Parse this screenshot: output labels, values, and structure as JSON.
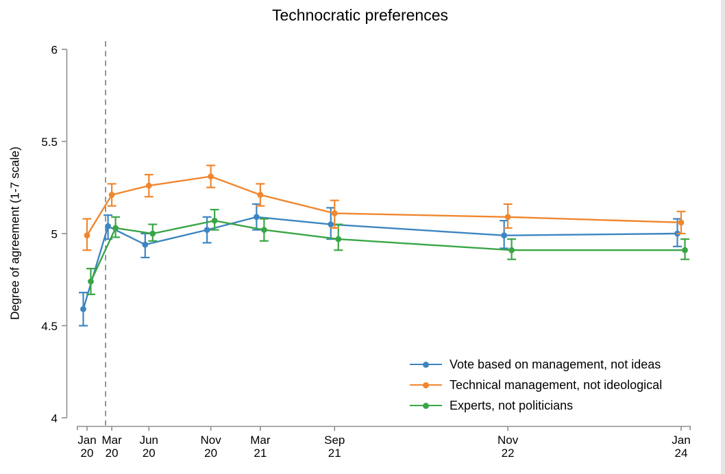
{
  "window": {
    "background": "#ffffff",
    "right_edge_strip_color": "#e6e6e6"
  },
  "chart_data": {
    "type": "line",
    "title": "Technocratic preferences",
    "ylabel": "Degree of agreement (1-7 scale)",
    "xlabel": "",
    "ylim": [
      4,
      6
    ],
    "yticks": [
      {
        "label": "6",
        "value": 6
      },
      {
        "label": "5.5",
        "value": 5.5
      },
      {
        "label": "5",
        "value": 5
      },
      {
        "label": "4.5",
        "value": 4.5
      },
      {
        "label": "4",
        "value": 4
      }
    ],
    "x_ticks": [
      {
        "line1": "Jan",
        "line2": "20",
        "months": 0
      },
      {
        "line1": "Mar",
        "line2": "20",
        "months": 2
      },
      {
        "line1": "Jun",
        "line2": "20",
        "months": 5
      },
      {
        "line1": "Nov",
        "line2": "20",
        "months": 10
      },
      {
        "line1": "Mar",
        "line2": "21",
        "months": 14
      },
      {
        "line1": "Sep",
        "line2": "21",
        "months": 20
      },
      {
        "line1": "Nov",
        "line2": "22",
        "months": 34
      },
      {
        "line1": "Jan",
        "line2": "24",
        "months": 48
      }
    ],
    "x_months": [
      0,
      2,
      5,
      10,
      14,
      20,
      34,
      48
    ],
    "grid": false,
    "error_bars": "vertical confidence-interval bars with caps on every point",
    "legend_position": "inside bottom-right",
    "axis_color": "#8e8e8e",
    "reference_line": {
      "orientation": "vertical",
      "style": "dashed",
      "x_months": 1.5,
      "color": "#7a7a7a"
    },
    "series": [
      {
        "name": "Vote based on management, not ideas",
        "color": "#3d85c1",
        "values": [
          4.59,
          5.04,
          4.94,
          5.02,
          5.09,
          5.05,
          4.99,
          5.0
        ],
        "ci_low": [
          4.5,
          4.97,
          4.87,
          4.95,
          5.02,
          4.97,
          4.92,
          4.93
        ],
        "ci_high": [
          4.68,
          5.1,
          5.0,
          5.09,
          5.16,
          5.14,
          5.07,
          5.08
        ]
      },
      {
        "name": "Technical management, not ideological",
        "color": "#f0862e",
        "values": [
          4.99,
          5.21,
          5.26,
          5.31,
          5.21,
          5.11,
          5.09,
          5.06
        ],
        "ci_low": [
          4.91,
          5.15,
          5.2,
          5.25,
          5.15,
          5.03,
          5.03,
          5.0
        ],
        "ci_high": [
          5.08,
          5.27,
          5.32,
          5.37,
          5.27,
          5.18,
          5.16,
          5.12
        ]
      },
      {
        "name": "Experts, not politicians",
        "color": "#3aa546",
        "values": [
          4.74,
          5.03,
          5.0,
          5.07,
          5.02,
          4.97,
          4.91,
          4.91
        ],
        "ci_low": [
          4.67,
          4.98,
          4.96,
          5.02,
          4.96,
          4.91,
          4.86,
          4.86
        ],
        "ci_high": [
          4.81,
          5.09,
          5.05,
          5.13,
          5.08,
          5.05,
          4.97,
          4.97
        ]
      }
    ]
  }
}
